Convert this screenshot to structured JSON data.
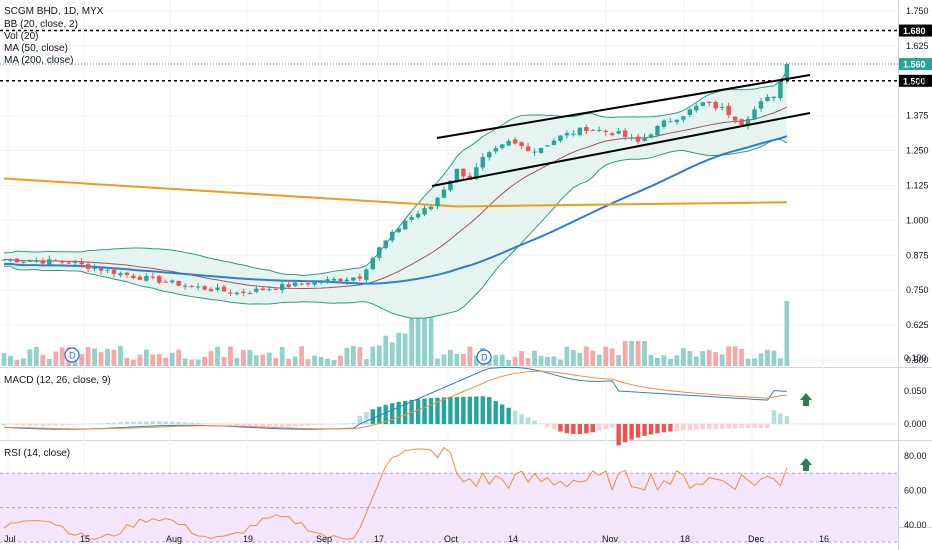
{
  "header": {
    "title": "SCGM BHD, 1D, MYX",
    "indicators": [
      "BB (20, close, 2)",
      "Vol (20)",
      "MA (50, close)",
      "MA (200, close)"
    ]
  },
  "macd_label": "MACD (12, 26, close, 9)",
  "rsi_label": "RSI (14, close)",
  "colors": {
    "up": "#26a69a",
    "down": "#ef5350",
    "bb_line": "#2b9f7f",
    "bb_fill": "#e6f4f1",
    "bb_mid": "#a7525b",
    "ma50": "#2e7fd0",
    "ma200": "#f29a1c",
    "macd": "#2e7fd0",
    "signal": "#f28f3b",
    "rsi": "#f28f3b",
    "rsi_band": "#f3e6fb",
    "arrow": "#2f7d4a",
    "last": "#26a69a"
  },
  "price_axis": {
    "ticks": [
      "1.750",
      "1.625",
      "1.500",
      "1.375",
      "1.250",
      "1.125",
      "1.000",
      "0.875",
      "0.750",
      "0.625",
      "0.500"
    ],
    "markers": [
      {
        "value": 1.68,
        "label": "1.680",
        "style": "dashed"
      },
      {
        "value": 1.56,
        "label": "1.560",
        "style": "last"
      },
      {
        "value": 1.5,
        "label": "1.500",
        "style": "dashed"
      }
    ]
  },
  "macd_axis": {
    "ticks": [
      "0.100",
      "0.050",
      "0.000"
    ]
  },
  "rsi_axis": {
    "ticks": [
      "80.00",
      "60.00",
      "40.00"
    ]
  },
  "x_axis": {
    "ticks": [
      "Jul",
      "15",
      "Aug",
      "19",
      "Sep",
      "17",
      "Oct",
      "14",
      "Nov",
      "18",
      "Dec",
      "16"
    ]
  },
  "dividend_markers": [
    "D",
    "D"
  ],
  "chart_data": {
    "type": "candlestick",
    "title": "SCGM BHD, 1D, MYX",
    "period": "Jul - Dec",
    "ylim": [
      0.47,
      1.78
    ],
    "price_series": [
      {
        "month": "Jul",
        "approx_close": 0.85
      },
      {
        "month": "Aug (low)",
        "approx_close": 0.74
      },
      {
        "month": "Sep early",
        "approx_close": 0.79
      },
      {
        "month": "Sep 17",
        "approx_close": 1.0
      },
      {
        "month": "Sep end",
        "approx_close": 1.2
      },
      {
        "month": "Oct 14",
        "approx_close": 1.33
      },
      {
        "month": "Nov",
        "approx_close": 1.35
      },
      {
        "month": "Nov 18",
        "approx_close": 1.42
      },
      {
        "month": "Dec",
        "approx_close": 1.45
      },
      {
        "month": "last",
        "approx_close": 1.56
      }
    ],
    "horizontal_levels": [
      1.68,
      1.5
    ],
    "last_price": 1.56,
    "ma200_range": [
      1.15,
      1.05
    ],
    "rsi_band": [
      30,
      70
    ],
    "macd_range": [
      0.0,
      0.1
    ],
    "rsi_range": [
      25,
      90
    ]
  }
}
